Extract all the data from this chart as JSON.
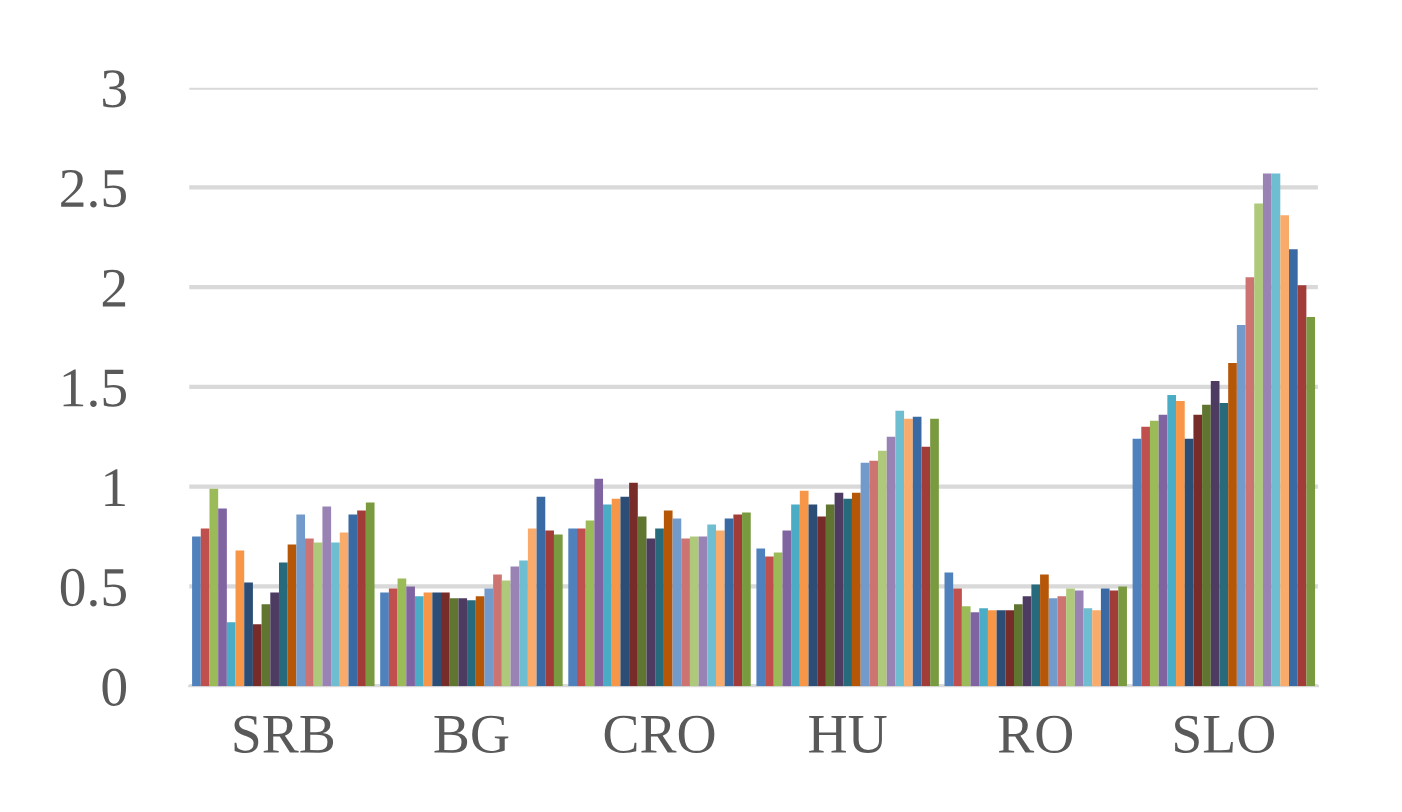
{
  "chart_data": {
    "type": "bar",
    "categories": [
      "SRB",
      "BG",
      "CRO",
      "HU",
      "RO",
      "SLO"
    ],
    "series": [
      {
        "color": "#4f81bd",
        "values": [
          0.75,
          0.47,
          0.79,
          0.69,
          0.57,
          1.24
        ]
      },
      {
        "color": "#c0504d",
        "values": [
          0.79,
          0.49,
          0.79,
          0.65,
          0.49,
          1.3
        ]
      },
      {
        "color": "#9bbb59",
        "values": [
          0.99,
          0.54,
          0.83,
          0.67,
          0.4,
          1.33
        ]
      },
      {
        "color": "#8064a2",
        "values": [
          0.89,
          0.5,
          1.04,
          0.78,
          0.37,
          1.36
        ]
      },
      {
        "color": "#4bacc6",
        "values": [
          0.32,
          0.45,
          0.91,
          0.91,
          0.39,
          1.46
        ]
      },
      {
        "color": "#f79646",
        "values": [
          0.68,
          0.47,
          0.94,
          0.98,
          0.38,
          1.43
        ]
      },
      {
        "color": "#2c4d75",
        "values": [
          0.52,
          0.47,
          0.95,
          0.91,
          0.38,
          1.24
        ]
      },
      {
        "color": "#772c2a",
        "values": [
          0.31,
          0.47,
          1.02,
          0.85,
          0.38,
          1.36
        ]
      },
      {
        "color": "#5f7530",
        "values": [
          0.41,
          0.44,
          0.85,
          0.91,
          0.41,
          1.41
        ]
      },
      {
        "color": "#4d3b62",
        "values": [
          0.47,
          0.44,
          0.74,
          0.97,
          0.45,
          1.53
        ]
      },
      {
        "color": "#276a7c",
        "values": [
          0.62,
          0.43,
          0.79,
          0.94,
          0.51,
          1.42
        ]
      },
      {
        "color": "#b65708",
        "values": [
          0.71,
          0.45,
          0.88,
          0.97,
          0.56,
          1.62
        ]
      },
      {
        "color": "#729aca",
        "values": [
          0.86,
          0.49,
          0.84,
          1.12,
          0.44,
          1.81
        ]
      },
      {
        "color": "#cd7371",
        "values": [
          0.74,
          0.56,
          0.74,
          1.13,
          0.45,
          2.05
        ]
      },
      {
        "color": "#afc97a",
        "values": [
          0.72,
          0.53,
          0.75,
          1.18,
          0.49,
          2.42
        ]
      },
      {
        "color": "#9983b5",
        "values": [
          0.9,
          0.6,
          0.75,
          1.25,
          0.48,
          2.57
        ]
      },
      {
        "color": "#6fbdd1",
        "values": [
          0.72,
          0.63,
          0.81,
          1.38,
          0.39,
          2.57
        ]
      },
      {
        "color": "#f9ab6b",
        "values": [
          0.77,
          0.79,
          0.78,
          1.34,
          0.38,
          2.36
        ]
      },
      {
        "color": "#3a6aa3",
        "values": [
          0.86,
          0.95,
          0.84,
          1.35,
          0.49,
          2.19
        ]
      },
      {
        "color": "#a13c39",
        "values": [
          0.88,
          0.78,
          0.86,
          1.2,
          0.48,
          2.01
        ]
      },
      {
        "color": "#7a9a40",
        "values": [
          0.92,
          0.76,
          0.87,
          1.34,
          0.5,
          1.85
        ]
      }
    ],
    "ylim": [
      0,
      3
    ],
    "yticks": [
      0,
      0.5,
      1,
      1.5,
      2,
      2.5,
      3
    ],
    "grid": "y",
    "legend": false
  }
}
